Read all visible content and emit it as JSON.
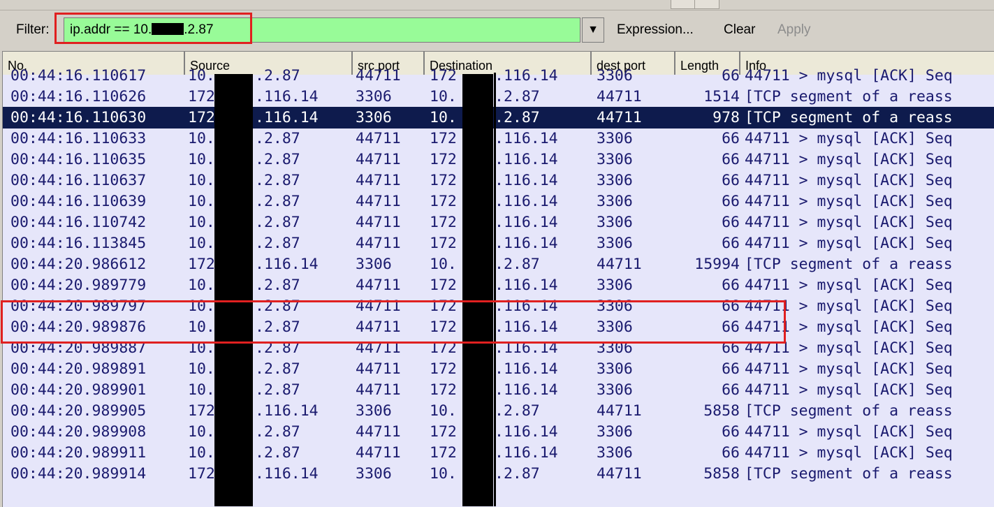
{
  "filter": {
    "label": "Filter:",
    "value_prefix": "ip.addr == 10.",
    "value_suffix": ".2.87",
    "expression_label": "Expression...",
    "clear_label": "Clear",
    "apply_label": "Apply"
  },
  "columns": [
    "No.",
    "Source",
    "src port",
    "Destination",
    "dest port",
    "Length",
    "Info"
  ],
  "colors": {
    "filter_bg": "#98fb98",
    "row_bg": "#e6e6fa",
    "selected_bg": "#0e1b4d",
    "highlight": "#e02020"
  },
  "selected_index": 2,
  "rows": [
    {
      "time": "00:44:16.110617",
      "src": "10.",
      "src_rest": ".2.87",
      "sport": "44711",
      "dst": "172",
      "dst_rest": ".116.14",
      "dport": "3306",
      "len": "66",
      "info": "44711 > mysql [ACK] Seq"
    },
    {
      "time": "00:44:16.110626",
      "src": "172",
      "src_rest": ".116.14",
      "sport": "3306",
      "dst": "10.",
      "dst_rest": ".2.87",
      "dport": "44711",
      "len": "1514",
      "info": "[TCP segment of a reass"
    },
    {
      "time": "00:44:16.110630",
      "src": "172",
      "src_rest": ".116.14",
      "sport": "3306",
      "dst": "10.",
      "dst_rest": ".2.87",
      "dport": "44711",
      "len": "978",
      "info": "[TCP segment of a reass"
    },
    {
      "time": "00:44:16.110633",
      "src": "10.",
      "src_rest": ".2.87",
      "sport": "44711",
      "dst": "172",
      "dst_rest": ".116.14",
      "dport": "3306",
      "len": "66",
      "info": "44711 > mysql [ACK] Seq"
    },
    {
      "time": "00:44:16.110635",
      "src": "10.",
      "src_rest": ".2.87",
      "sport": "44711",
      "dst": "172",
      "dst_rest": ".116.14",
      "dport": "3306",
      "len": "66",
      "info": "44711 > mysql [ACK] Seq"
    },
    {
      "time": "00:44:16.110637",
      "src": "10.",
      "src_rest": ".2.87",
      "sport": "44711",
      "dst": "172",
      "dst_rest": ".116.14",
      "dport": "3306",
      "len": "66",
      "info": "44711 > mysql [ACK] Seq"
    },
    {
      "time": "00:44:16.110639",
      "src": "10.",
      "src_rest": ".2.87",
      "sport": "44711",
      "dst": "172",
      "dst_rest": ".116.14",
      "dport": "3306",
      "len": "66",
      "info": "44711 > mysql [ACK] Seq"
    },
    {
      "time": "00:44:16.110742",
      "src": "10.",
      "src_rest": ".2.87",
      "sport": "44711",
      "dst": "172",
      "dst_rest": ".116.14",
      "dport": "3306",
      "len": "66",
      "info": "44711 > mysql [ACK] Seq"
    },
    {
      "time": "00:44:16.113845",
      "src": "10.",
      "src_rest": ".2.87",
      "sport": "44711",
      "dst": "172",
      "dst_rest": ".116.14",
      "dport": "3306",
      "len": "66",
      "info": "44711 > mysql [ACK] Seq"
    },
    {
      "time": "00:44:20.986612",
      "src": "172",
      "src_rest": ".116.14",
      "sport": "3306",
      "dst": "10.",
      "dst_rest": ".2.87",
      "dport": "44711",
      "len": "15994",
      "info": "[TCP segment of a reass"
    },
    {
      "time": "00:44:20.989779",
      "src": "10.",
      "src_rest": ".2.87",
      "sport": "44711",
      "dst": "172",
      "dst_rest": ".116.14",
      "dport": "3306",
      "len": "66",
      "info": "44711 > mysql [ACK] Seq"
    },
    {
      "time": "00:44:20.989797",
      "src": "10.",
      "src_rest": ".2.87",
      "sport": "44711",
      "dst": "172",
      "dst_rest": ".116.14",
      "dport": "3306",
      "len": "66",
      "info": "44711 > mysql [ACK] Seq"
    },
    {
      "time": "00:44:20.989876",
      "src": "10.",
      "src_rest": ".2.87",
      "sport": "44711",
      "dst": "172",
      "dst_rest": ".116.14",
      "dport": "3306",
      "len": "66",
      "info": "44711 > mysql [ACK] Seq"
    },
    {
      "time": "00:44:20.989887",
      "src": "10.",
      "src_rest": ".2.87",
      "sport": "44711",
      "dst": "172",
      "dst_rest": ".116.14",
      "dport": "3306",
      "len": "66",
      "info": "44711 > mysql [ACK] Seq"
    },
    {
      "time": "00:44:20.989891",
      "src": "10.",
      "src_rest": ".2.87",
      "sport": "44711",
      "dst": "172",
      "dst_rest": ".116.14",
      "dport": "3306",
      "len": "66",
      "info": "44711 > mysql [ACK] Seq"
    },
    {
      "time": "00:44:20.989901",
      "src": "10.",
      "src_rest": ".2.87",
      "sport": "44711",
      "dst": "172",
      "dst_rest": ".116.14",
      "dport": "3306",
      "len": "66",
      "info": "44711 > mysql [ACK] Seq"
    },
    {
      "time": "00:44:20.989905",
      "src": "172",
      "src_rest": ".116.14",
      "sport": "3306",
      "dst": "10.",
      "dst_rest": ".2.87",
      "dport": "44711",
      "len": "5858",
      "info": "[TCP segment of a reass"
    },
    {
      "time": "00:44:20.989908",
      "src": "10.",
      "src_rest": ".2.87",
      "sport": "44711",
      "dst": "172",
      "dst_rest": ".116.14",
      "dport": "3306",
      "len": "66",
      "info": "44711 > mysql [ACK] Seq"
    },
    {
      "time": "00:44:20.989911",
      "src": "10.",
      "src_rest": ".2.87",
      "sport": "44711",
      "dst": "172",
      "dst_rest": ".116.14",
      "dport": "3306",
      "len": "66",
      "info": "44711 > mysql [ACK] Seq"
    },
    {
      "time": "00:44:20.989914",
      "src": "172",
      "src_rest": ".116.14",
      "sport": "3306",
      "dst": "10.",
      "dst_rest": ".2.87",
      "dport": "44711",
      "len": "5858",
      "info": "[TCP segment of a reass"
    }
  ]
}
